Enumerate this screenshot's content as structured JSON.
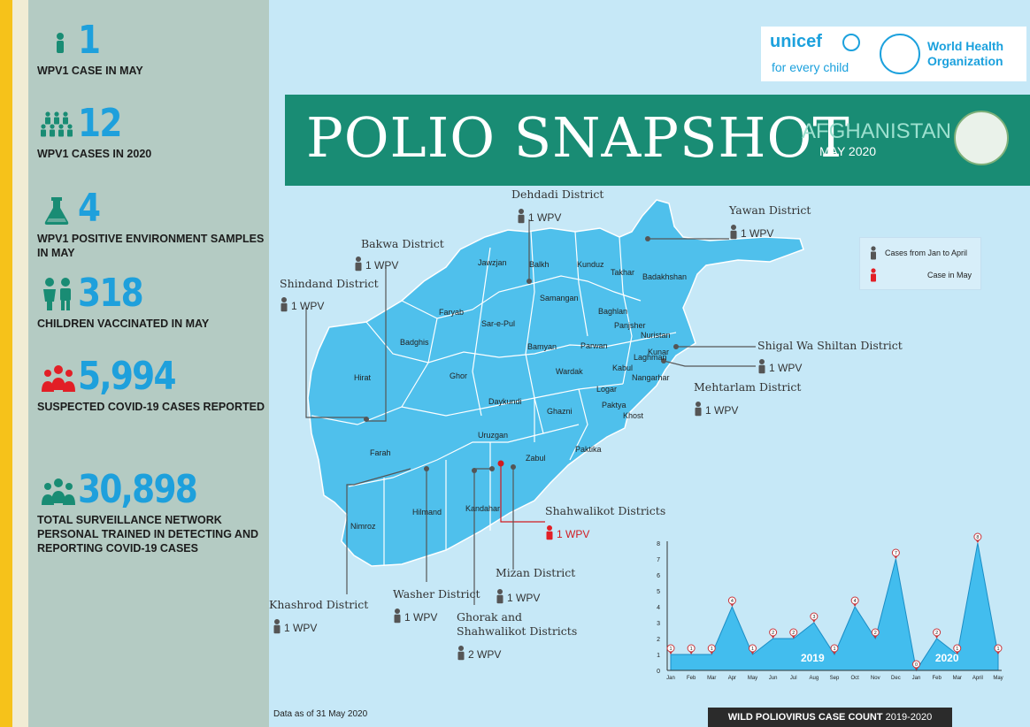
{
  "stats": [
    {
      "value": "1",
      "label": "WPV1 CASE IN MAY",
      "icon": "person-icon"
    },
    {
      "value": "12",
      "label": "WPV1 CASES IN 2020",
      "icon": "people-group-icon"
    },
    {
      "value": "4",
      "label": "WPV1 POSITIVE ENVIRONMENT SAMPLES IN MAY",
      "icon": "flask-icon"
    },
    {
      "value": "318",
      "label": "CHILDREN VACCINATED IN MAY",
      "icon": "children-icon"
    },
    {
      "value": "5,994",
      "label": "SUSPECTED COVID-19 CASES REPORTED",
      "icon": "crowd-icon"
    },
    {
      "value": "30,898",
      "label": "TOTAL SURVEILLANCE NETWORK PERSONAL TRAINED IN DETECTING AND REPORTING COVID-19 CASES",
      "icon": "team-icon"
    }
  ],
  "logos": {
    "unicef": "unicef",
    "unicef_tagline": "for every child",
    "who_line1": "World Health",
    "who_line2": "Organization"
  },
  "banner": {
    "title": "POLIO SNAPSHOT",
    "country": "AFGHANISTAN",
    "date": "MAY 2020"
  },
  "colors": {
    "accent": "#1ea0dc",
    "banner": "#198c74",
    "map": "#4fc0ec",
    "may_case": "#e21f26",
    "prior_case": "#555555"
  },
  "legend": {
    "prior": "Cases from Jan to April",
    "may": "Case in May"
  },
  "districts": [
    {
      "name": "Dehdadi District",
      "count": "1 WPV",
      "may": false
    },
    {
      "name": "Yawan District",
      "count": "1 WPV",
      "may": false
    },
    {
      "name": "Bakwa District",
      "count": "1 WPV",
      "may": false
    },
    {
      "name": "Shindand District",
      "count": "1 WPV",
      "may": false
    },
    {
      "name": "Shigal Wa Shiltan District",
      "count": "1 WPV",
      "may": false
    },
    {
      "name": "Mehtarlam District",
      "count": "1 WPV",
      "may": false
    },
    {
      "name": "Shahwalikot Districts",
      "count": "1 WPV",
      "may": true
    },
    {
      "name": "Mizan District",
      "count": "1 WPV",
      "may": false
    },
    {
      "name": "Washer District",
      "count": "1 WPV",
      "may": false
    },
    {
      "name": "Khashrod District",
      "count": "1 WPV",
      "may": false
    },
    {
      "name": "Ghorak and",
      "name2": "Shahwalikot Districts",
      "count": "2 WPV",
      "may": false
    }
  ],
  "provinces": [
    "Jawzjan",
    "Balkh",
    "Kunduz",
    "Takhar",
    "Badakhshan",
    "Faryab",
    "Samangan",
    "Baghlan",
    "Sar-e-Pul",
    "Panjsher",
    "Nuristan",
    "Badghis",
    "Bamyan",
    "Parwan",
    "Kunar",
    "Laghman",
    "Kabul",
    "Hirat",
    "Ghor",
    "Wardak",
    "Nangarhar",
    "Logar",
    "Daykundi",
    "Ghazni",
    "Paktya",
    "Khost",
    "Uruzgan",
    "Zabul",
    "Paktika",
    "Farah",
    "Kandahar",
    "Hilmand",
    "Nimroz"
  ],
  "footer": {
    "data_note": "Data as of 31 May 2020",
    "chart_title": "WILD POLIOVIRUS CASE COUNT",
    "chart_years": "2019-2020"
  },
  "chart_data": {
    "type": "area",
    "title": "WILD POLIOVIRUS CASE COUNT 2019-2020",
    "x": [
      "Jan",
      "Feb",
      "Mar",
      "Apr",
      "May",
      "Jun",
      "Jul",
      "Aug",
      "Sep",
      "Oct",
      "Nov",
      "Dec",
      "Jan",
      "Feb",
      "Mar",
      "April",
      "May"
    ],
    "values": [
      1,
      1,
      1,
      4,
      1,
      2,
      2,
      3,
      1,
      4,
      2,
      7,
      0,
      2,
      1,
      8,
      1
    ],
    "year_labels": [
      "2019",
      "2020"
    ],
    "ylim": [
      0,
      8
    ],
    "yticks": [
      0,
      1,
      2,
      3,
      4,
      5,
      6,
      7,
      8
    ],
    "grid": false
  }
}
